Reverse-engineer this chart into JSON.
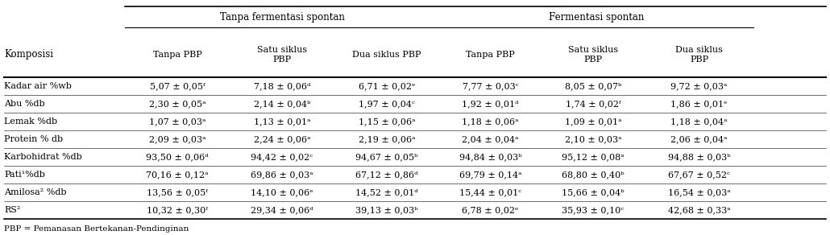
{
  "group_headers": [
    "Tanpa fermentasi spontan",
    "Fermentasi spontan"
  ],
  "col_headers": [
    "Tanpa PBP",
    "Satu siklus\nPBP",
    "Dua siklus PBP",
    "Tanpa PBP",
    "Satu siklus\nPBP",
    "Dua siklus\nPBP"
  ],
  "row_header": "Komposisi",
  "row_labels": [
    "Kadar air %wb",
    "Abu %db",
    "Lemak %db",
    "Protein % db",
    "Karbohidrat %db",
    "Pati¹%db",
    "Amilosa² %db",
    "RS²"
  ],
  "data": [
    [
      "5,07 ± 0,05ᶠ",
      "7,18 ± 0,06ᵈ",
      "6,71 ± 0,02ᵉ",
      "7,77 ± 0,03ᶜ",
      "8,05 ± 0,07ᵇ",
      "9,72 ± 0,03ᵃ"
    ],
    [
      "2,30 ± 0,05ᵃ",
      "2,14 ± 0,04ᵇ",
      "1,97 ± 0,04ᶜ",
      "1,92 ± 0,01ᵈ",
      "1,74 ± 0,02ᶠ",
      "1,86 ± 0,01ᵉ"
    ],
    [
      "1,07 ± 0,03ᵃ",
      "1,13 ± 0,01ᵃ",
      "1,15 ± 0,06ᵃ",
      "1,18 ± 0,06ᵃ",
      "1,09 ± 0,01ᵃ",
      "1,18 ± 0,04ᵃ"
    ],
    [
      "2,09 ± 0,03ᵃ",
      "2,24 ± 0,06ᵃ",
      "2,19 ± 0,06ᵃ",
      "2,04 ± 0,04ᵃ",
      "2,10 ± 0,03ᵃ",
      "2,06 ± 0,04ᵃ"
    ],
    [
      "93,50 ± 0,06ᵈ",
      "94,42 ± 0,02ᶜ",
      "94,67 ± 0,05ᵇ",
      "94,84 ± 0,03ᵇ",
      "95,12 ± 0,08ᵃ",
      "94,88 ± 0,03ᵇ"
    ],
    [
      "70,16 ± 0,12ᵃ",
      "69,86 ± 0,03ᵃ",
      "67,12 ± 0,86ᵈ",
      "69,79 ± 0,14ᵃ",
      "68,80 ± 0,40ᵇ",
      "67,67 ± 0,52ᶜ"
    ],
    [
      "13,56 ± 0,05ᶠ",
      "14,10 ± 0,06ᵉ",
      "14,52 ± 0,01ᵈ",
      "15,44 ± 0,01ᶜ",
      "15,66 ± 0,04ᵇ",
      "16,54 ± 0,03ᵃ"
    ],
    [
      "10,32 ± 0,30ᶠ",
      "29,34 ± 0,06ᵈ",
      "39,13 ± 0,03ᵇ",
      "6,78 ± 0,02ᵉ",
      "35,93 ± 0,10ᶜ",
      "42,68 ± 0,33ᵃ"
    ]
  ],
  "footnote": "PBP = Pemanasan Bertekanan-Pendinginan",
  "fs": 8.0,
  "hfs": 8.5
}
